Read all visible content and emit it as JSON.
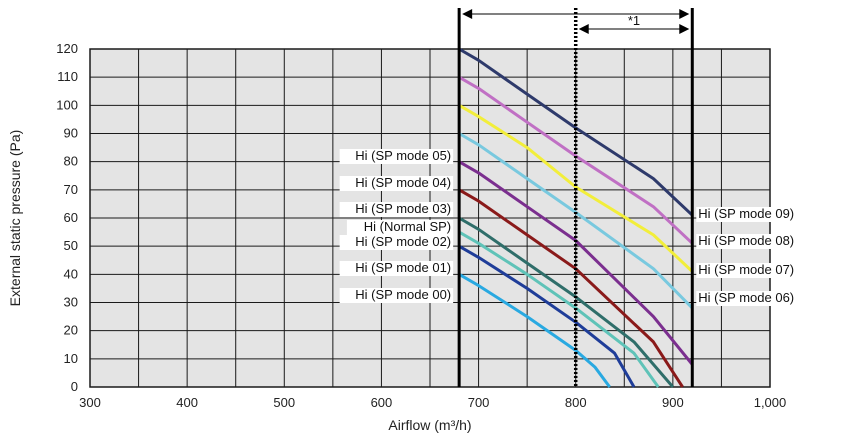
{
  "chart_data": {
    "type": "line",
    "xlabel": "Airflow (m³/h)",
    "ylabel": "External static pressure (Pa)",
    "xlim": [
      300,
      1000
    ],
    "ylim": [
      0,
      120
    ],
    "x_ticks": [
      "300",
      "400",
      "500",
      "600",
      "700",
      "800",
      "900",
      "1,000"
    ],
    "y_ticks": [
      "0",
      "10",
      "20",
      "30",
      "40",
      "50",
      "60",
      "70",
      "80",
      "90",
      "100",
      "110",
      "120"
    ],
    "grid": true,
    "vertical_markers": [
      {
        "x": 680,
        "style": "solid"
      },
      {
        "x": 800,
        "style": "dotted"
      },
      {
        "x": 920,
        "style": "solid"
      }
    ],
    "range_annotation": {
      "label": "*1"
    },
    "series": [
      {
        "name": "Hi (SP mode 00)",
        "color": "#29a9e1",
        "label_side": "left",
        "points": [
          [
            680,
            40
          ],
          [
            700,
            36
          ],
          [
            750,
            25
          ],
          [
            800,
            13
          ],
          [
            820,
            7
          ],
          [
            835,
            0
          ]
        ]
      },
      {
        "name": "Hi (SP mode 01)",
        "color": "#1f3d99",
        "label_side": "left",
        "points": [
          [
            680,
            50
          ],
          [
            700,
            46
          ],
          [
            750,
            35
          ],
          [
            800,
            23
          ],
          [
            840,
            12
          ],
          [
            860,
            0
          ]
        ]
      },
      {
        "name": "Hi (SP mode 02)",
        "color": "#5fc3b8",
        "label_side": "left",
        "points": [
          [
            680,
            55
          ],
          [
            700,
            51
          ],
          [
            750,
            40
          ],
          [
            800,
            28
          ],
          [
            860,
            12
          ],
          [
            885,
            0
          ]
        ]
      },
      {
        "name": "Hi (Normal SP)",
        "color": "#2f6e6a",
        "label_side": "left",
        "points": [
          [
            680,
            60
          ],
          [
            700,
            56
          ],
          [
            750,
            44
          ],
          [
            800,
            32
          ],
          [
            860,
            16
          ],
          [
            900,
            0
          ]
        ]
      },
      {
        "name": "Hi (SP mode 03)",
        "color": "#8a1a1a",
        "label_side": "left",
        "points": [
          [
            680,
            70
          ],
          [
            700,
            66
          ],
          [
            750,
            54
          ],
          [
            800,
            42
          ],
          [
            880,
            16
          ],
          [
            910,
            0
          ]
        ]
      },
      {
        "name": "Hi (SP mode 04)",
        "color": "#7b2f8f",
        "label_side": "left",
        "points": [
          [
            680,
            80
          ],
          [
            700,
            76
          ],
          [
            750,
            64
          ],
          [
            800,
            52
          ],
          [
            880,
            25
          ],
          [
            920,
            8
          ]
        ]
      },
      {
        "name": "Hi (SP mode 06)",
        "color": "#79c9df",
        "label_side": "right",
        "points": [
          [
            680,
            90
          ],
          [
            700,
            86
          ],
          [
            750,
            74
          ],
          [
            800,
            62
          ],
          [
            880,
            42
          ],
          [
            920,
            28
          ]
        ]
      },
      {
        "name": "Hi (SP mode 07)",
        "color": "#f2ee3a",
        "label_side": "right",
        "points": [
          [
            680,
            100
          ],
          [
            700,
            96
          ],
          [
            750,
            85
          ],
          [
            800,
            71
          ],
          [
            880,
            54
          ],
          [
            920,
            41
          ]
        ]
      },
      {
        "name": "Hi (SP mode 08)",
        "color": "#c070c4",
        "label_side": "right",
        "points": [
          [
            680,
            110
          ],
          [
            700,
            106
          ],
          [
            750,
            94
          ],
          [
            800,
            82
          ],
          [
            880,
            64
          ],
          [
            920,
            51
          ]
        ]
      },
      {
        "name": "Hi (SP mode 09)",
        "color": "#2e3a6b",
        "label_side": "right",
        "points": [
          [
            680,
            120
          ],
          [
            700,
            116
          ],
          [
            750,
            104
          ],
          [
            800,
            92
          ],
          [
            880,
            74
          ],
          [
            920,
            61
          ]
        ]
      }
    ],
    "annotations": [
      {
        "text": "Hi (SP mode 05)",
        "series_ref": null
      },
      {
        "text": "Hi (SP mode 04)",
        "series_ref": 5
      },
      {
        "text": "Hi (SP mode 03)",
        "series_ref": 4
      },
      {
        "text": "Hi (Normal SP)",
        "series_ref": 3
      },
      {
        "text": "Hi (SP mode 02)",
        "series_ref": 2
      },
      {
        "text": "Hi (SP mode 01)",
        "series_ref": 1
      },
      {
        "text": "Hi (SP mode 00)",
        "series_ref": 0
      },
      {
        "text": "Hi (SP mode 09)",
        "series_ref": 9
      },
      {
        "text": "Hi (SP mode 08)",
        "series_ref": 8
      },
      {
        "text": "Hi (SP mode 07)",
        "series_ref": 7
      },
      {
        "text": "Hi (SP mode 06)",
        "series_ref": 6
      }
    ]
  }
}
